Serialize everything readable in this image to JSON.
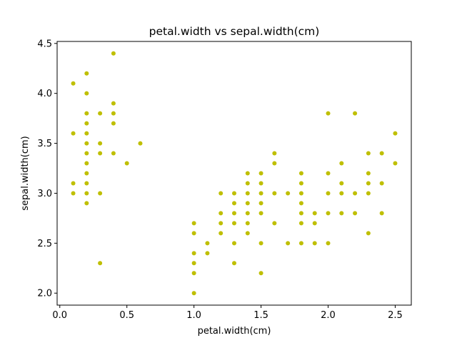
{
  "chart_data": {
    "type": "scatter",
    "title": "petal.width vs sepal.width(cm)",
    "xlabel": "petal.width(cm)",
    "ylabel": "sepal.width(cm)",
    "xlim": [
      -0.02,
      2.62
    ],
    "ylim": [
      1.88,
      4.52
    ],
    "xticks": [
      "0.0",
      "0.5",
      "1.0",
      "1.5",
      "2.0",
      "2.5"
    ],
    "yticks": [
      "2.0",
      "2.5",
      "3.0",
      "3.5",
      "4.0",
      "4.5"
    ],
    "grid": false,
    "marker_color": "#bfbf00",
    "series": [
      {
        "points": [
          [
            0.1,
            4.1
          ],
          [
            0.1,
            3.6
          ],
          [
            0.1,
            3.1
          ],
          [
            0.1,
            3.0
          ],
          [
            0.2,
            4.2
          ],
          [
            0.2,
            4.0
          ],
          [
            0.2,
            3.8
          ],
          [
            0.2,
            3.7
          ],
          [
            0.2,
            3.6
          ],
          [
            0.2,
            3.5
          ],
          [
            0.2,
            3.4
          ],
          [
            0.2,
            3.3
          ],
          [
            0.2,
            3.2
          ],
          [
            0.2,
            3.1
          ],
          [
            0.2,
            3.0
          ],
          [
            0.2,
            2.9
          ],
          [
            0.3,
            3.8
          ],
          [
            0.3,
            3.5
          ],
          [
            0.3,
            3.4
          ],
          [
            0.3,
            3.0
          ],
          [
            0.3,
            2.3
          ],
          [
            0.4,
            4.4
          ],
          [
            0.4,
            3.9
          ],
          [
            0.4,
            3.8
          ],
          [
            0.4,
            3.7
          ],
          [
            0.4,
            3.4
          ],
          [
            0.5,
            3.3
          ],
          [
            0.6,
            3.5
          ],
          [
            1.0,
            2.7
          ],
          [
            1.0,
            2.6
          ],
          [
            1.0,
            2.4
          ],
          [
            1.0,
            2.3
          ],
          [
            1.0,
            2.2
          ],
          [
            1.0,
            2.0
          ],
          [
            1.1,
            2.5
          ],
          [
            1.1,
            2.4
          ],
          [
            1.2,
            3.0
          ],
          [
            1.2,
            2.8
          ],
          [
            1.2,
            2.7
          ],
          [
            1.2,
            2.6
          ],
          [
            1.3,
            3.0
          ],
          [
            1.3,
            2.9
          ],
          [
            1.3,
            2.8
          ],
          [
            1.3,
            2.7
          ],
          [
            1.3,
            2.5
          ],
          [
            1.3,
            2.3
          ],
          [
            1.4,
            3.2
          ],
          [
            1.4,
            3.1
          ],
          [
            1.4,
            3.0
          ],
          [
            1.4,
            2.9
          ],
          [
            1.4,
            2.8
          ],
          [
            1.4,
            2.7
          ],
          [
            1.4,
            2.6
          ],
          [
            1.5,
            3.2
          ],
          [
            1.5,
            3.1
          ],
          [
            1.5,
            3.0
          ],
          [
            1.5,
            2.9
          ],
          [
            1.5,
            2.8
          ],
          [
            1.5,
            2.5
          ],
          [
            1.5,
            2.2
          ],
          [
            1.6,
            3.4
          ],
          [
            1.6,
            3.3
          ],
          [
            1.6,
            3.0
          ],
          [
            1.6,
            2.7
          ],
          [
            1.7,
            3.0
          ],
          [
            1.7,
            2.5
          ],
          [
            1.8,
            3.2
          ],
          [
            1.8,
            3.1
          ],
          [
            1.8,
            3.0
          ],
          [
            1.8,
            2.9
          ],
          [
            1.8,
            2.8
          ],
          [
            1.8,
            2.7
          ],
          [
            1.8,
            2.5
          ],
          [
            1.9,
            2.8
          ],
          [
            1.9,
            2.7
          ],
          [
            1.9,
            2.5
          ],
          [
            2.0,
            3.8
          ],
          [
            2.0,
            3.2
          ],
          [
            2.0,
            3.0
          ],
          [
            2.0,
            2.8
          ],
          [
            2.0,
            2.5
          ],
          [
            2.1,
            3.3
          ],
          [
            2.1,
            3.1
          ],
          [
            2.1,
            3.0
          ],
          [
            2.1,
            2.8
          ],
          [
            2.2,
            3.8
          ],
          [
            2.2,
            3.0
          ],
          [
            2.2,
            2.8
          ],
          [
            2.3,
            3.4
          ],
          [
            2.3,
            3.2
          ],
          [
            2.3,
            3.1
          ],
          [
            2.3,
            3.0
          ],
          [
            2.3,
            2.6
          ],
          [
            2.4,
            3.4
          ],
          [
            2.4,
            3.1
          ],
          [
            2.4,
            2.8
          ],
          [
            2.5,
            3.6
          ],
          [
            2.5,
            3.3
          ]
        ]
      }
    ]
  }
}
